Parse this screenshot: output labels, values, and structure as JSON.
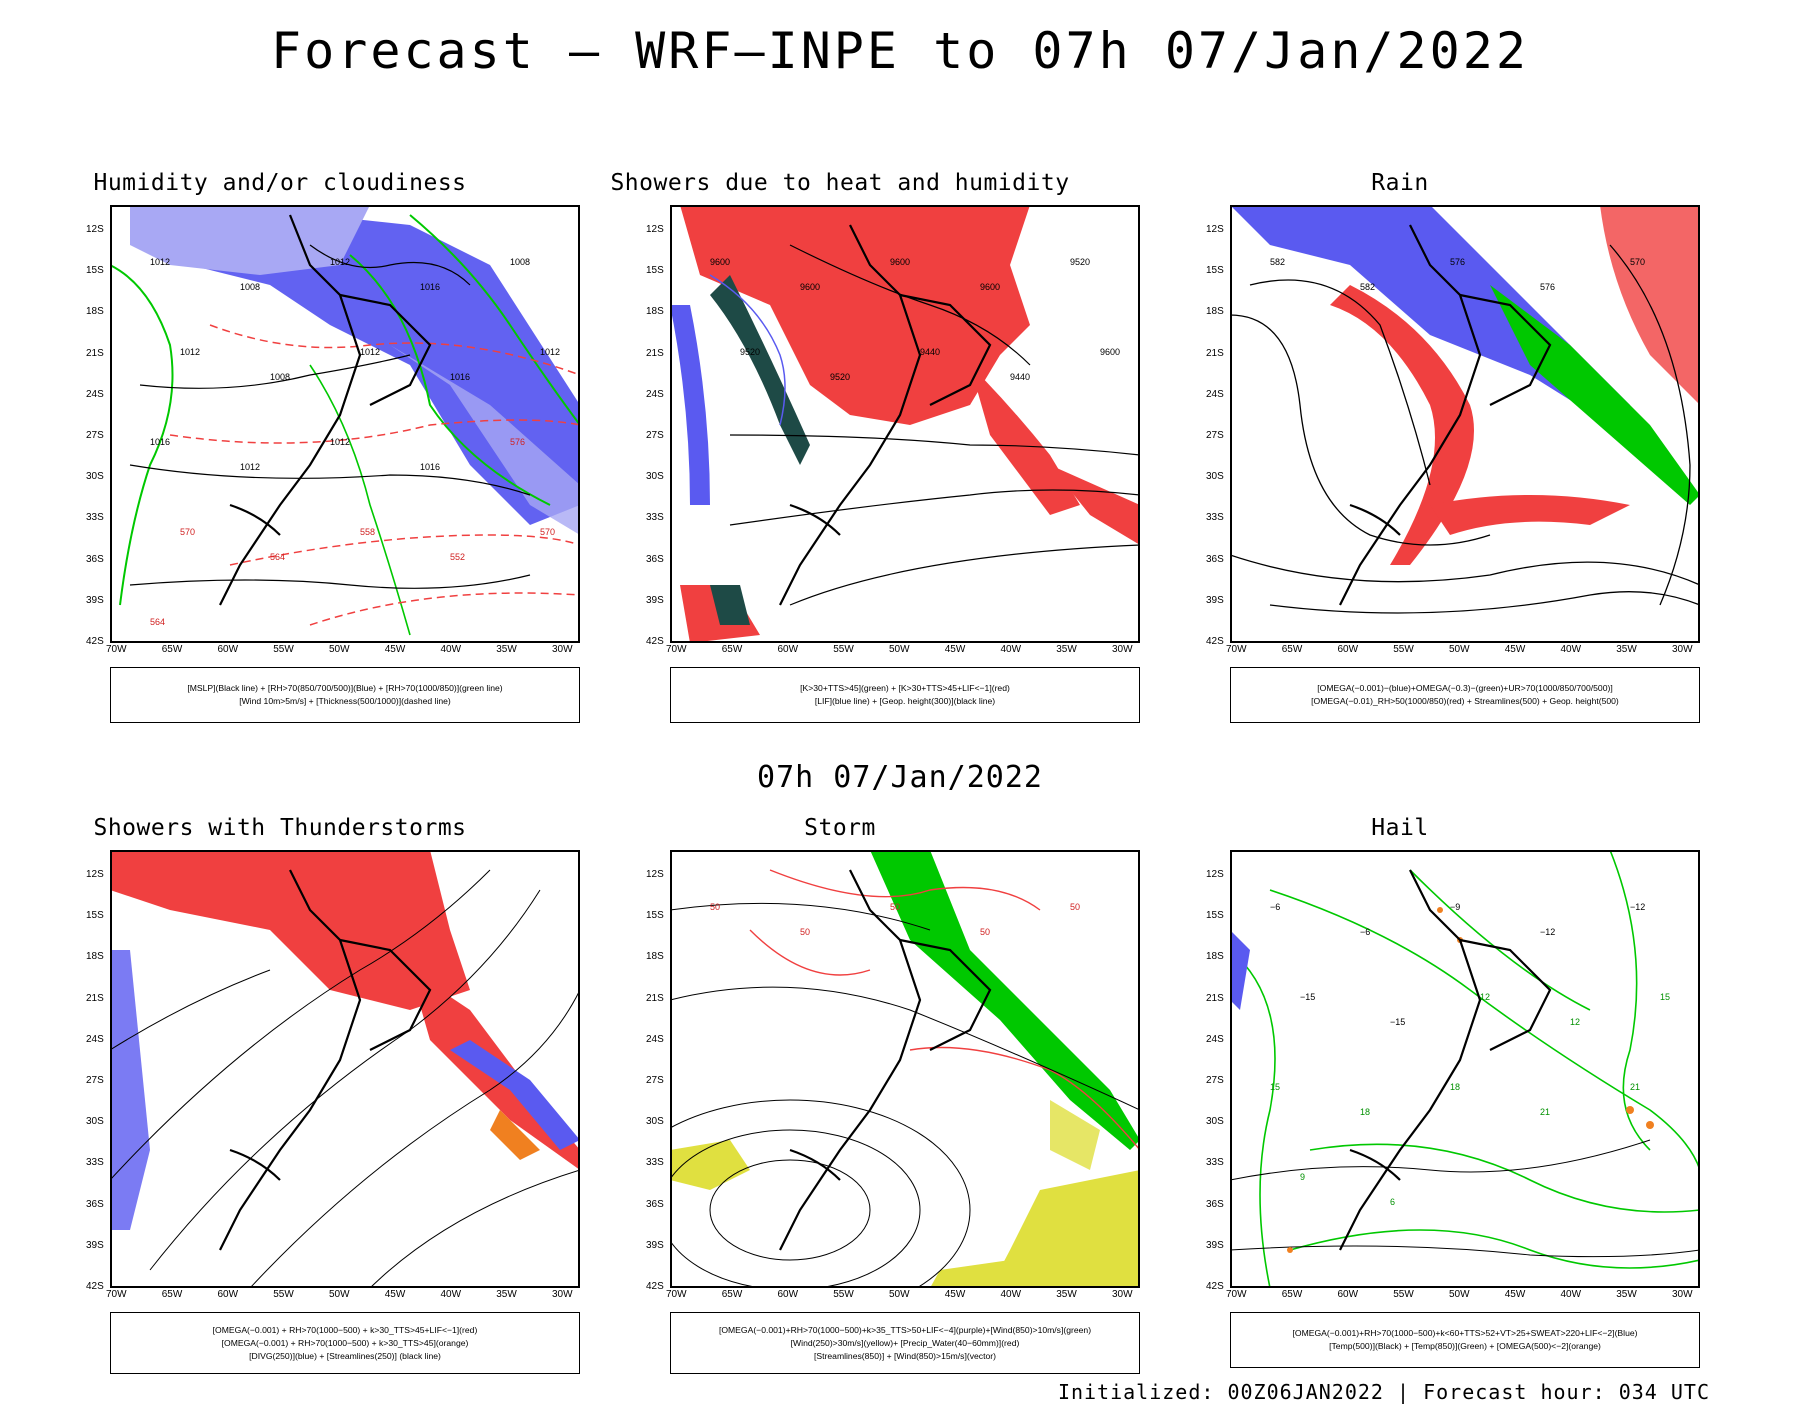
{
  "title": "Forecast — WRF—INPE to 07h 07/Jan/2022",
  "mid_title": "07h 07/Jan/2022",
  "footer": "Initialized: 00Z06JAN2022 | Forecast hour: 034 UTC",
  "lat_ticks": [
    "12S",
    "15S",
    "18S",
    "21S",
    "24S",
    "27S",
    "30S",
    "33S",
    "36S",
    "39S",
    "42S"
  ],
  "lon_ticks": [
    "70W",
    "65W",
    "60W",
    "55W",
    "50W",
    "45W",
    "40W",
    "35W",
    "30W"
  ],
  "colors": {
    "blue_rh": "#5a5af0",
    "light_blue": "#a8a8f4",
    "green": "#00c800",
    "red": "#f04040",
    "dark_teal": "#1e4a46",
    "orange": "#f08020",
    "yellow": "#e0e040"
  },
  "panels": [
    {
      "title": "Humidity and/or cloudiness",
      "legend": [
        "[MSLP](Black line) + [RH>70(850/700/500)](Blue) + [RH>70(1000/850)](green line)",
        "[Wind 10m>5m/s] + [Thickness(500/1000)](dashed line)"
      ],
      "contour_labels": [
        "1012",
        "1008",
        "1012",
        "1016",
        "1008",
        "1012",
        "1008",
        "1012",
        "1016",
        "1012",
        "1016",
        "1012",
        "1012",
        "1016",
        "576",
        "570",
        "564",
        "558",
        "552",
        "570",
        "564"
      ]
    },
    {
      "title": "Showers due to heat and humidity",
      "legend": [
        "[K>30+TTS>45](green) + [K>30+TTS>45+LIF<−1](red)",
        "[LIF](blue line) + [Geop. height(300)](black line)"
      ],
      "contour_labels": [
        "9600",
        "9600",
        "9600",
        "9600",
        "9520",
        "9520",
        "9520",
        "9440",
        "9440",
        "9600"
      ]
    },
    {
      "title": "Rain",
      "legend": [
        "[OMEGA(−0.001)−(blue)+OMEGA(−0.3)−(green)+UR>70(1000/850/700/500)]",
        "[OMEGA(−0.01)_RH>50(1000/850)(red) + Streamlines(500) + Geop. height(500)"
      ],
      "contour_labels": [
        "582",
        "582",
        "576",
        "576",
        "570"
      ]
    },
    {
      "title": "Showers with Thunderstorms",
      "legend": [
        "[OMEGA(−0.001) + RH>70(1000−500) + k>30_TTS>45+LIF<−1](red)",
        "[OMEGA(−0.001) + RH>70(1000−500) + k>30_TTS>45](orange)",
        "[DIVG(250)](blue) + [Streamlines(250)] (black line)"
      ],
      "contour_labels": []
    },
    {
      "title": "Storm",
      "legend": [
        "[OMEGA(−0.001)+RH>70(1000−500)+k>35_TTS>50+LIF<−4](purple)+[Wind(850)>10m/s](green)",
        "[Wind(250)>30m/s](yellow)+ [Precip_Water(40−60mm)](red)",
        "[Streamlines(850)] + [Wind(850)>15m/s](vector)"
      ],
      "contour_labels": [
        "50",
        "50",
        "50",
        "50",
        "50"
      ]
    },
    {
      "title": "Hail",
      "legend": [
        "[OMEGA(−0.001)+RH>70(1000−500)+k<60+TTS>52+VT>25+SWEAT>220+LIF<−2](Blue)",
        "[Temp(500)](Black) + [Temp(850)](Green) + [OMEGA(500)<−2](orange)"
      ],
      "contour_labels": [
        "−6",
        "−6",
        "−9",
        "−12",
        "−12",
        "−15",
        "−15",
        "12",
        "12",
        "15",
        "15",
        "18",
        "18",
        "21",
        "21",
        "9",
        "6"
      ]
    }
  ]
}
